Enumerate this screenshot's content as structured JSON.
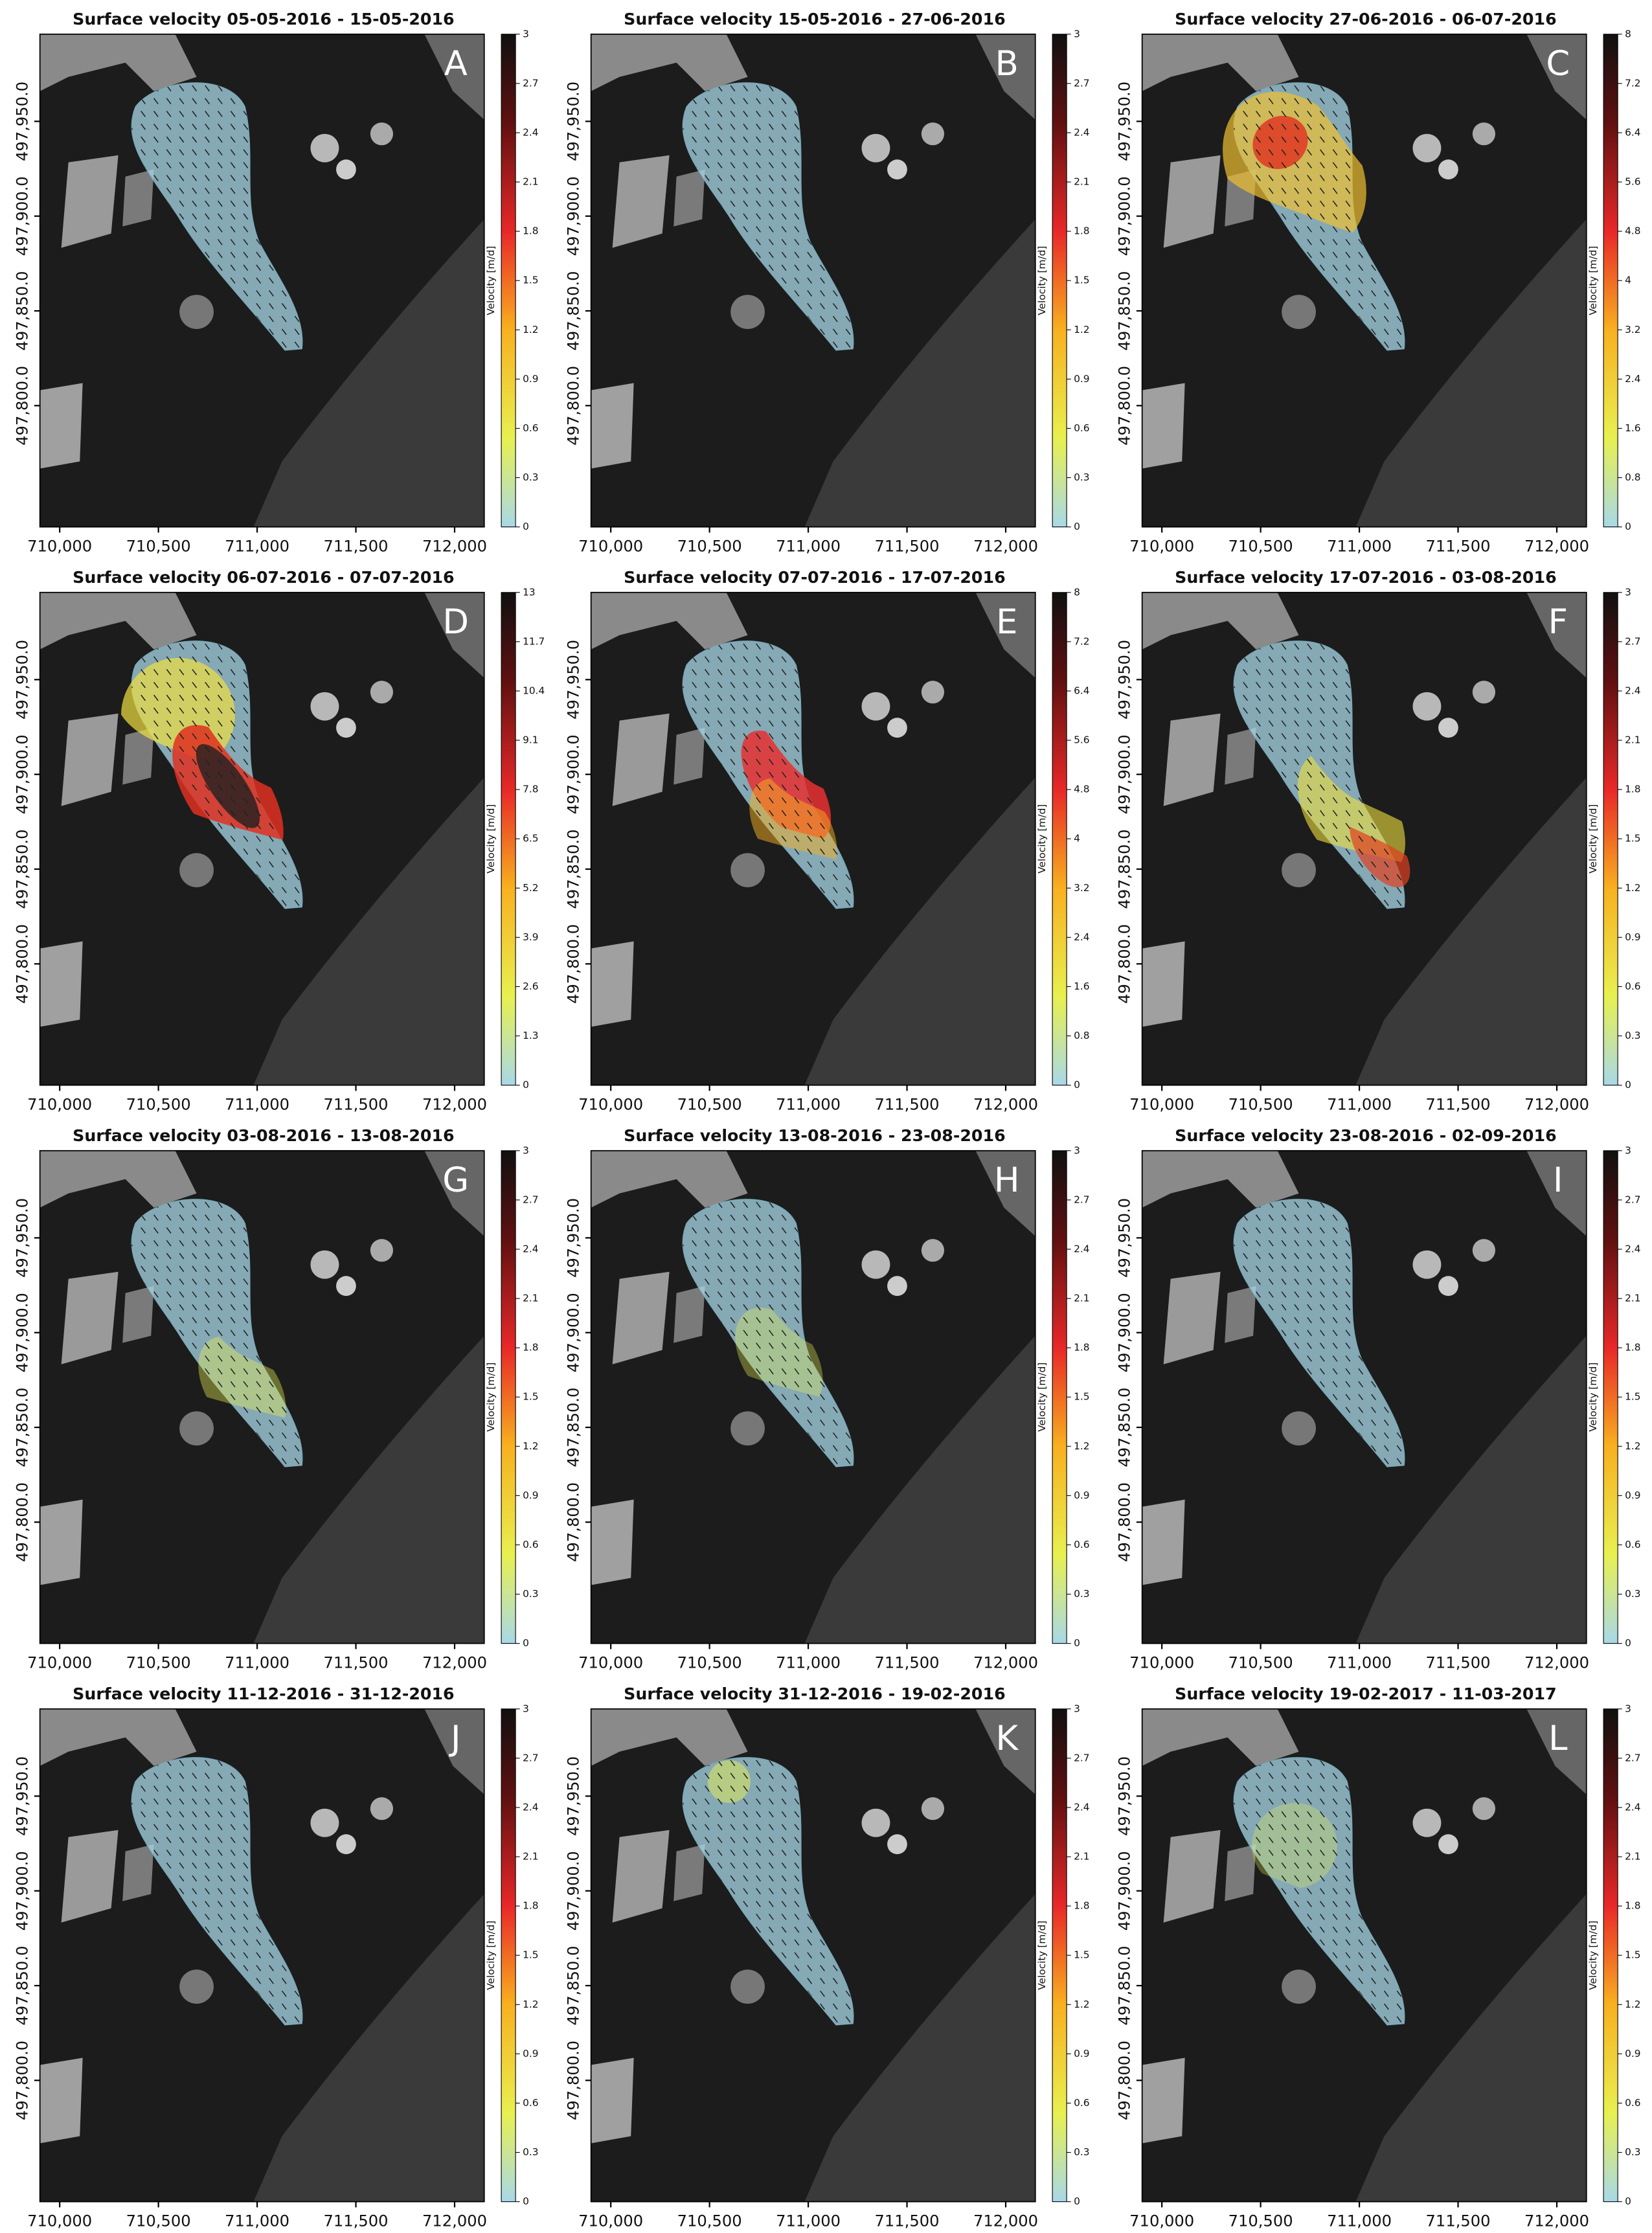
{
  "chart_data": [
    {
      "type": "map",
      "title": "Surface velocity 05-05-2016 - 15-05-2016",
      "label": "A",
      "xlim": [
        709900,
        712150
      ],
      "xticks": [
        {
          "value": 710000,
          "label": "710,000"
        },
        {
          "value": 710500,
          "label": "710,500"
        },
        {
          "value": 711000,
          "label": "711,000"
        },
        {
          "value": 711500,
          "label": "711,500"
        },
        {
          "value": 712000,
          "label": "712,000"
        }
      ],
      "ylim": [
        497736,
        497996
      ],
      "yticks": [
        {
          "value": 497800,
          "label": "497,800.0"
        },
        {
          "value": 497850,
          "label": "497,850.0"
        },
        {
          "value": 497900,
          "label": "497,900.0"
        },
        {
          "value": 497950,
          "label": "497,950.0"
        }
      ],
      "colorbar": {
        "label": "Velocity [m/d]",
        "lim": [
          0,
          3
        ],
        "ticks": [
          0,
          0.3,
          0.6,
          0.9,
          1.2,
          1.5,
          1.8,
          2.1,
          2.4,
          2.7,
          3
        ]
      }
    },
    {
      "type": "map",
      "title": "Surface velocity 15-05-2016 - 27-06-2016",
      "label": "B",
      "xlim": [
        709900,
        712150
      ],
      "xticks": [
        {
          "value": 710000,
          "label": "710,000"
        },
        {
          "value": 710500,
          "label": "710,500"
        },
        {
          "value": 711000,
          "label": "711,000"
        },
        {
          "value": 711500,
          "label": "711,500"
        },
        {
          "value": 712000,
          "label": "712,000"
        }
      ],
      "ylim": [
        497736,
        497996
      ],
      "yticks": [
        {
          "value": 497800,
          "label": "497,800.0"
        },
        {
          "value": 497850,
          "label": "497,850.0"
        },
        {
          "value": 497900,
          "label": "497,900.0"
        },
        {
          "value": 497950,
          "label": "497,950.0"
        }
      ],
      "colorbar": {
        "label": "Velocity [m/d]",
        "lim": [
          0,
          3
        ],
        "ticks": [
          0,
          0.3,
          0.6,
          0.9,
          1.2,
          1.5,
          1.8,
          2.1,
          2.4,
          2.7,
          3
        ]
      }
    },
    {
      "type": "map",
      "title": "Surface velocity 27-06-2016 - 06-07-2016",
      "label": "C",
      "xlim": [
        709900,
        712150
      ],
      "xticks": [
        {
          "value": 710000,
          "label": "710,000"
        },
        {
          "value": 710500,
          "label": "710,500"
        },
        {
          "value": 711000,
          "label": "711,000"
        },
        {
          "value": 711500,
          "label": "711,500"
        },
        {
          "value": 712000,
          "label": "712,000"
        }
      ],
      "ylim": [
        497736,
        497996
      ],
      "yticks": [
        {
          "value": 497800,
          "label": "497,800.0"
        },
        {
          "value": 497850,
          "label": "497,850.0"
        },
        {
          "value": 497900,
          "label": "497,900.0"
        },
        {
          "value": 497950,
          "label": "497,950.0"
        }
      ],
      "colorbar": {
        "label": "Velocity [m/d]",
        "lim": [
          0,
          8
        ],
        "ticks": [
          0,
          0.8,
          1.6,
          2.4,
          3.2,
          4,
          4.8,
          5.6,
          6.4,
          7.2,
          8
        ]
      }
    },
    {
      "type": "map",
      "title": "Surface velocity 06-07-2016 - 07-07-2016",
      "label": "D",
      "xlim": [
        709900,
        712150
      ],
      "xticks": [
        {
          "value": 710000,
          "label": "710,000"
        },
        {
          "value": 710500,
          "label": "710,500"
        },
        {
          "value": 711000,
          "label": "711,000"
        },
        {
          "value": 711500,
          "label": "711,500"
        },
        {
          "value": 712000,
          "label": "712,000"
        }
      ],
      "ylim": [
        497736,
        497996
      ],
      "yticks": [
        {
          "value": 497800,
          "label": "497,800.0"
        },
        {
          "value": 497850,
          "label": "497,850.0"
        },
        {
          "value": 497900,
          "label": "497,900.0"
        },
        {
          "value": 497950,
          "label": "497,950.0"
        }
      ],
      "colorbar": {
        "label": "Velocity [m/d]",
        "lim": [
          0,
          13
        ],
        "ticks": [
          0,
          1.3,
          2.6,
          3.9,
          5.2,
          6.5,
          7.8,
          9.1,
          10.4,
          11.7,
          13
        ]
      }
    },
    {
      "type": "map",
      "title": "Surface velocity 07-07-2016 - 17-07-2016",
      "label": "E",
      "xlim": [
        709900,
        712150
      ],
      "xticks": [
        {
          "value": 710000,
          "label": "710,000"
        },
        {
          "value": 710500,
          "label": "710,500"
        },
        {
          "value": 711000,
          "label": "711,000"
        },
        {
          "value": 711500,
          "label": "711,500"
        },
        {
          "value": 712000,
          "label": "712,000"
        }
      ],
      "ylim": [
        497736,
        497996
      ],
      "yticks": [
        {
          "value": 497800,
          "label": "497,800.0"
        },
        {
          "value": 497850,
          "label": "497,850.0"
        },
        {
          "value": 497900,
          "label": "497,900.0"
        },
        {
          "value": 497950,
          "label": "497,950.0"
        }
      ],
      "colorbar": {
        "label": "Velocity [m/d]",
        "lim": [
          0,
          8
        ],
        "ticks": [
          0,
          0.8,
          1.6,
          2.4,
          3.2,
          4,
          4.8,
          5.6,
          6.4,
          7.2,
          8
        ]
      }
    },
    {
      "type": "map",
      "title": "Surface velocity 17-07-2016 - 03-08-2016",
      "label": "F",
      "xlim": [
        709900,
        712150
      ],
      "xticks": [
        {
          "value": 710000,
          "label": "710,000"
        },
        {
          "value": 710500,
          "label": "710,500"
        },
        {
          "value": 711000,
          "label": "711,000"
        },
        {
          "value": 711500,
          "label": "711,500"
        },
        {
          "value": 712000,
          "label": "712,000"
        }
      ],
      "ylim": [
        497736,
        497996
      ],
      "yticks": [
        {
          "value": 497800,
          "label": "497,800.0"
        },
        {
          "value": 497850,
          "label": "497,850.0"
        },
        {
          "value": 497900,
          "label": "497,900.0"
        },
        {
          "value": 497950,
          "label": "497,950.0"
        }
      ],
      "colorbar": {
        "label": "Velocity [m/d]",
        "lim": [
          0,
          3
        ],
        "ticks": [
          0,
          0.3,
          0.6,
          0.9,
          1.2,
          1.5,
          1.8,
          2.1,
          2.4,
          2.7,
          3
        ]
      }
    },
    {
      "type": "map",
      "title": "Surface velocity 03-08-2016 - 13-08-2016",
      "label": "G",
      "xlim": [
        709900,
        712150
      ],
      "xticks": [
        {
          "value": 710000,
          "label": "710,000"
        },
        {
          "value": 710500,
          "label": "710,500"
        },
        {
          "value": 711000,
          "label": "711,000"
        },
        {
          "value": 711500,
          "label": "711,500"
        },
        {
          "value": 712000,
          "label": "712,000"
        }
      ],
      "ylim": [
        497736,
        497996
      ],
      "yticks": [
        {
          "value": 497800,
          "label": "497,800.0"
        },
        {
          "value": 497850,
          "label": "497,850.0"
        },
        {
          "value": 497900,
          "label": "497,900.0"
        },
        {
          "value": 497950,
          "label": "497,950.0"
        }
      ],
      "colorbar": {
        "label": "Velocity [m/d]",
        "lim": [
          0,
          3
        ],
        "ticks": [
          0,
          0.3,
          0.6,
          0.9,
          1.2,
          1.5,
          1.8,
          2.1,
          2.4,
          2.7,
          3
        ]
      }
    },
    {
      "type": "map",
      "title": "Surface velocity 13-08-2016 - 23-08-2016",
      "label": "H",
      "xlim": [
        709900,
        712150
      ],
      "xticks": [
        {
          "value": 710000,
          "label": "710,000"
        },
        {
          "value": 710500,
          "label": "710,500"
        },
        {
          "value": 711000,
          "label": "711,000"
        },
        {
          "value": 711500,
          "label": "711,500"
        },
        {
          "value": 712000,
          "label": "712,000"
        }
      ],
      "ylim": [
        497736,
        497996
      ],
      "yticks": [
        {
          "value": 497800,
          "label": "497,800.0"
        },
        {
          "value": 497850,
          "label": "497,850.0"
        },
        {
          "value": 497900,
          "label": "497,900.0"
        },
        {
          "value": 497950,
          "label": "497,950.0"
        }
      ],
      "colorbar": {
        "label": "Velocity [m/d]",
        "lim": [
          0,
          3
        ],
        "ticks": [
          0,
          0.3,
          0.6,
          0.9,
          1.2,
          1.5,
          1.8,
          2.1,
          2.4,
          2.7,
          3
        ]
      }
    },
    {
      "type": "map",
      "title": "Surface velocity 23-08-2016 - 02-09-2016",
      "label": "I",
      "xlim": [
        709900,
        712150
      ],
      "xticks": [
        {
          "value": 710000,
          "label": "710,000"
        },
        {
          "value": 710500,
          "label": "710,500"
        },
        {
          "value": 711000,
          "label": "711,000"
        },
        {
          "value": 711500,
          "label": "711,500"
        },
        {
          "value": 712000,
          "label": "712,000"
        }
      ],
      "ylim": [
        497736,
        497996
      ],
      "yticks": [
        {
          "value": 497800,
          "label": "497,800.0"
        },
        {
          "value": 497850,
          "label": "497,850.0"
        },
        {
          "value": 497900,
          "label": "497,900.0"
        },
        {
          "value": 497950,
          "label": "497,950.0"
        }
      ],
      "colorbar": {
        "label": "Velocity [m/d]",
        "lim": [
          0,
          3
        ],
        "ticks": [
          0,
          0.3,
          0.6,
          0.9,
          1.2,
          1.5,
          1.8,
          2.1,
          2.4,
          2.7,
          3
        ]
      }
    },
    {
      "type": "map",
      "title": "Surface velocity 11-12-2016 - 31-12-2016",
      "label": "J",
      "xlim": [
        709900,
        712150
      ],
      "xticks": [
        {
          "value": 710000,
          "label": "710,000"
        },
        {
          "value": 710500,
          "label": "710,500"
        },
        {
          "value": 711000,
          "label": "711,000"
        },
        {
          "value": 711500,
          "label": "711,500"
        },
        {
          "value": 712000,
          "label": "712,000"
        }
      ],
      "ylim": [
        497736,
        497996
      ],
      "yticks": [
        {
          "value": 497800,
          "label": "497,800.0"
        },
        {
          "value": 497850,
          "label": "497,850.0"
        },
        {
          "value": 497900,
          "label": "497,900.0"
        },
        {
          "value": 497950,
          "label": "497,950.0"
        }
      ],
      "colorbar": {
        "label": "Velocity [m/d]",
        "lim": [
          0,
          3
        ],
        "ticks": [
          0,
          0.3,
          0.6,
          0.9,
          1.2,
          1.5,
          1.8,
          2.1,
          2.4,
          2.7,
          3
        ]
      }
    },
    {
      "type": "map",
      "title": "Surface velocity 31-12-2016 - 19-02-2016",
      "label": "K",
      "xlim": [
        709900,
        712150
      ],
      "xticks": [
        {
          "value": 710000,
          "label": "710,000"
        },
        {
          "value": 710500,
          "label": "710,500"
        },
        {
          "value": 711000,
          "label": "711,000"
        },
        {
          "value": 711500,
          "label": "711,500"
        },
        {
          "value": 712000,
          "label": "712,000"
        }
      ],
      "ylim": [
        497736,
        497996
      ],
      "yticks": [
        {
          "value": 497800,
          "label": "497,800.0"
        },
        {
          "value": 497850,
          "label": "497,850.0"
        },
        {
          "value": 497900,
          "label": "497,900.0"
        },
        {
          "value": 497950,
          "label": "497,950.0"
        }
      ],
      "colorbar": {
        "label": "Velocity [m/d]",
        "lim": [
          0,
          3
        ],
        "ticks": [
          0,
          0.3,
          0.6,
          0.9,
          1.2,
          1.5,
          1.8,
          2.1,
          2.4,
          2.7,
          3
        ]
      }
    },
    {
      "type": "map",
      "title": "Surface velocity 19-02-2017 - 11-03-2017",
      "label": "L",
      "xlim": [
        709900,
        712150
      ],
      "xticks": [
        {
          "value": 710000,
          "label": "710,000"
        },
        {
          "value": 710500,
          "label": "710,500"
        },
        {
          "value": 711000,
          "label": "711,000"
        },
        {
          "value": 711500,
          "label": "711,500"
        },
        {
          "value": 712000,
          "label": "712,000"
        }
      ],
      "ylim": [
        497736,
        497996
      ],
      "yticks": [
        {
          "value": 497800,
          "label": "497,800.0"
        },
        {
          "value": 497850,
          "label": "497,850.0"
        },
        {
          "value": 497900,
          "label": "497,900.0"
        },
        {
          "value": 497950,
          "label": "497,950.0"
        }
      ],
      "colorbar": {
        "label": "Velocity [m/d]",
        "lim": [
          0,
          3
        ],
        "ticks": [
          0,
          0.3,
          0.6,
          0.9,
          1.2,
          1.5,
          1.8,
          2.1,
          2.4,
          2.7,
          3
        ]
      }
    }
  ]
}
